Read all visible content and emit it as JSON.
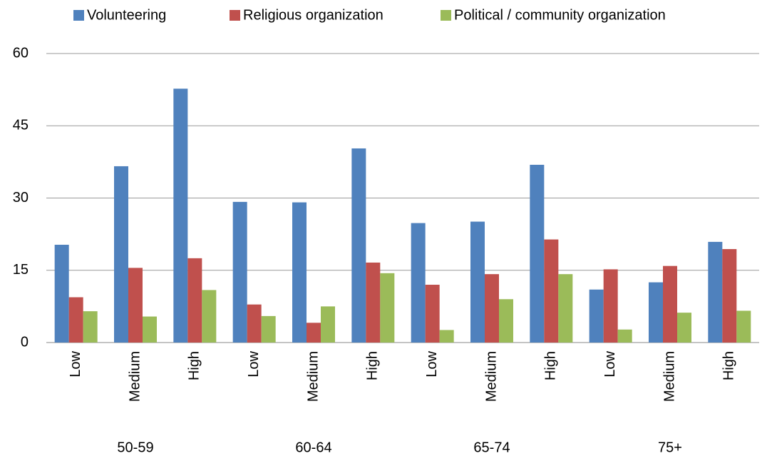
{
  "chart_data": {
    "type": "bar",
    "categories": [
      "Low",
      "Medium",
      "High",
      "Low",
      "Medium",
      "High",
      "Low",
      "Medium",
      "High",
      "Low",
      "Medium",
      "High"
    ],
    "groups": [
      "50-59",
      "60-64",
      "65-74",
      "75+"
    ],
    "series": [
      {
        "name": "Volunteering",
        "color": "#4f81bd",
        "values": [
          20.3,
          36.6,
          52.7,
          29.2,
          29.1,
          40.3,
          24.8,
          25.1,
          36.9,
          11.0,
          12.5,
          20.9
        ]
      },
      {
        "name": "Religious organization",
        "color": "#c0504d",
        "values": [
          9.4,
          15.5,
          17.5,
          7.9,
          4.1,
          16.6,
          12.0,
          14.2,
          21.4,
          15.2,
          15.9,
          19.4
        ]
      },
      {
        "name": "Political / community organization",
        "color": "#9bbb59",
        "values": [
          6.5,
          5.4,
          10.9,
          5.5,
          7.5,
          14.4,
          2.6,
          9.0,
          14.2,
          2.7,
          6.2,
          6.6
        ]
      }
    ],
    "ylim": [
      0,
      60
    ],
    "yticks": [
      0,
      15,
      30,
      45,
      60
    ],
    "grid": true,
    "legend": "top"
  }
}
